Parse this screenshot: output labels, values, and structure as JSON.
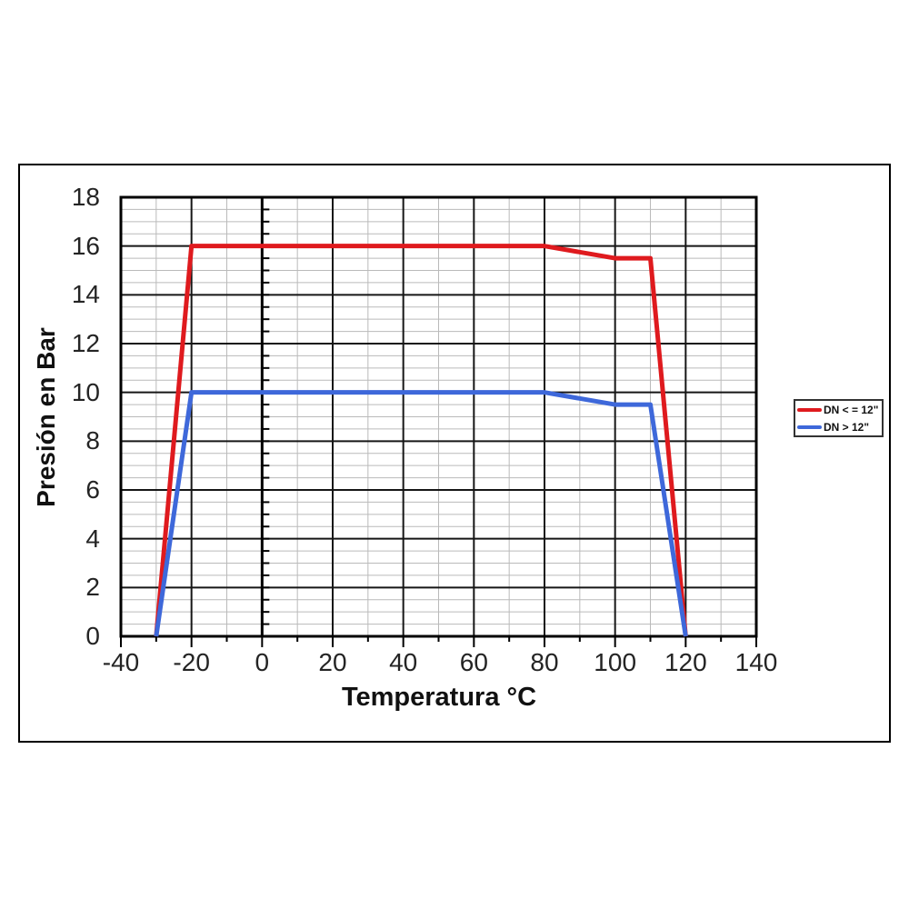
{
  "chart_data": {
    "type": "line",
    "title": "",
    "xlabel": "Temperatura °C",
    "ylabel": "Presión en Bar",
    "xlim": [
      -40,
      140
    ],
    "ylim": [
      0,
      18
    ],
    "x_major_step": 20,
    "x_minor_step": 10,
    "y_major_step": 2,
    "y_minor_step": 0.5,
    "x_ticks": [
      -40,
      -20,
      0,
      20,
      40,
      60,
      80,
      100,
      120,
      140
    ],
    "y_ticks": [
      0,
      2,
      4,
      6,
      8,
      10,
      12,
      14,
      16,
      18
    ],
    "grid": {
      "major": true,
      "minor": true
    },
    "legend_position": "right-outside",
    "series": [
      {
        "name": "DN < = 12\"",
        "color": "#df1a1e",
        "points": [
          [
            -30,
            0
          ],
          [
            -20,
            16
          ],
          [
            80,
            16
          ],
          [
            100,
            15.5
          ],
          [
            110,
            15.5
          ],
          [
            120,
            0
          ]
        ]
      },
      {
        "name": "DN > 12\"",
        "color": "#3e68da",
        "points": [
          [
            -30,
            0
          ],
          [
            -20,
            10
          ],
          [
            80,
            10
          ],
          [
            100,
            9.5
          ],
          [
            110,
            9.5
          ],
          [
            120,
            0
          ]
        ]
      }
    ]
  },
  "colors": {
    "major_grid": "#161616",
    "minor_grid": "#bababa",
    "plot_border": "#000000",
    "axis_line": "#000000",
    "tick_text": "#242424"
  }
}
